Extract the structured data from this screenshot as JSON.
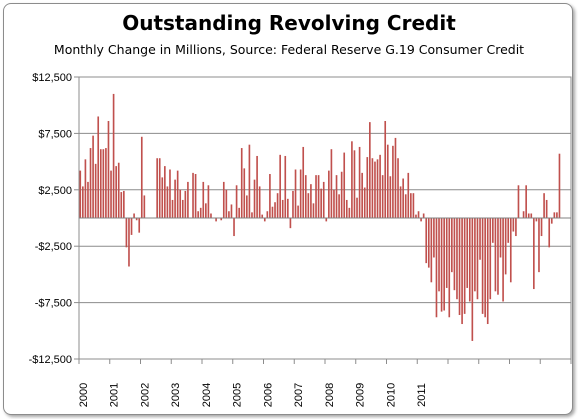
{
  "chart_data": {
    "type": "bar",
    "title": "Outstanding Revolving Credit",
    "subtitle": "Monthly Change in Millions, Source: Federal Reserve G.19 Consumer Credit",
    "xlabel": "",
    "ylabel": "",
    "ylim": [
      -12500,
      12500
    ],
    "y_ticks": [
      "-$12,500",
      "-$7,500",
      "-$2,500",
      "$2,500",
      "$7,500",
      "$12,500"
    ],
    "y_tick_values": [
      -12500,
      -7500,
      -2500,
      2500,
      7500,
      12500
    ],
    "x_tick_labels": [
      "2000",
      "2001",
      "2002",
      "2003",
      "2004",
      "2005",
      "2006",
      "2007",
      "2008",
      "2009",
      "2010",
      "2011"
    ],
    "x_start": "2000-01",
    "bar_color": "#c0504d",
    "grid": true,
    "values": [
      4200,
      2800,
      5200,
      3200,
      6200,
      7300,
      4800,
      9000,
      6100,
      6100,
      6200,
      8600,
      4200,
      11000,
      4600,
      4900,
      2300,
      2400,
      -2600,
      -4300,
      -1500,
      400,
      -200,
      -1300,
      7200,
      2000,
      0,
      0,
      0,
      0,
      5300,
      5300,
      3600,
      4600,
      2800,
      4300,
      1600,
      3400,
      4200,
      2500,
      1600,
      2400,
      3200,
      0,
      4000,
      3900,
      600,
      900,
      3200,
      1300,
      2900,
      400,
      0,
      -300,
      0,
      -200,
      3200,
      2500,
      600,
      1200,
      -1600,
      2900,
      900,
      6200,
      4400,
      2000,
      6500,
      500,
      3400,
      5500,
      2800,
      300,
      -300,
      600,
      3900,
      1000,
      1400,
      2200,
      5600,
      1600,
      5500,
      1700,
      -900,
      2400,
      4300,
      1100,
      4300,
      6300,
      3800,
      2200,
      3000,
      1300,
      3800,
      3800,
      2600,
      3200,
      -300,
      4200,
      6100,
      2500,
      3800,
      2100,
      4100,
      5800,
      1600,
      900,
      6800,
      6000,
      1800,
      6300,
      4000,
      2700,
      5400,
      8500,
      5300,
      5000,
      5200,
      5600,
      3800,
      8600,
      6500,
      3700,
      6400,
      7100,
      5300,
      2800,
      3500,
      2100,
      4000,
      2200,
      2200,
      300,
      600,
      -300,
      400,
      -4000,
      -4400,
      -5700,
      -3500,
      -8800,
      -6500,
      -8300,
      -8200,
      -6200,
      -8800,
      -4800,
      -6400,
      -7200,
      -8600,
      -9400,
      -8500,
      -6200,
      -7400,
      -10900,
      -6500,
      -7200,
      -3700,
      -8500,
      -8800,
      -9400,
      -7200,
      -2200,
      -6500,
      -6800,
      -3500,
      -7400,
      -5000,
      -2200,
      -5700,
      -1200,
      -1600,
      2900,
      0,
      600,
      2900,
      400,
      400,
      -6300,
      -300,
      -4800,
      -1600,
      2200,
      1600,
      -2600,
      -500,
      500,
      500,
      5700,
      0,
      0,
      0,
      0
    ]
  }
}
